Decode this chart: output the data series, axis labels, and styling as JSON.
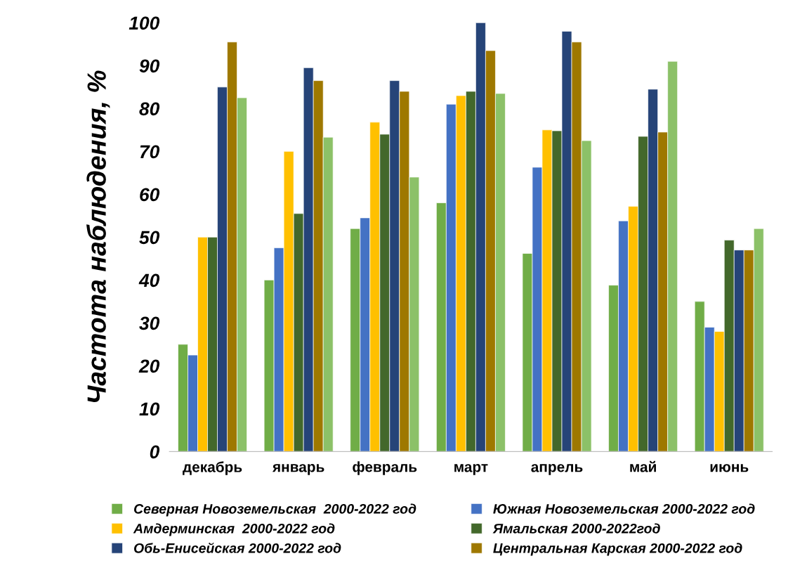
{
  "chart_data": {
    "type": "bar",
    "ylabel": "Частота наблюдения, %",
    "categories": [
      "декабрь",
      "январь",
      "февраль",
      "март",
      "апрель",
      "май",
      "июнь"
    ],
    "series": [
      {
        "name": "Северная Новоземельская  2000-2022 год",
        "color": "#70ad47",
        "values": [
          25,
          40,
          52,
          58,
          46.2,
          38.8,
          35
        ]
      },
      {
        "name": "Южная Новоземельская 2000-2022 год",
        "color": "#4472c4",
        "values": [
          22.5,
          47.5,
          54.5,
          81,
          66.3,
          53.8,
          29
        ]
      },
      {
        "name": "Амдерминская  2000-2022 год",
        "color": "#ffc000",
        "values": [
          50,
          70,
          76.8,
          83,
          75,
          57.2,
          28
        ]
      },
      {
        "name": "Ямальская 2000-2022год",
        "color": "#43682b",
        "values": [
          50,
          55.5,
          74,
          84,
          74.8,
          73.5,
          49.3
        ]
      },
      {
        "name": "Обь-Енисейская 2000-2022 год",
        "color": "#264478",
        "values": [
          85,
          89.5,
          86.5,
          100,
          98,
          84.5,
          47
        ]
      },
      {
        "name": "Центральная Карская 2000-2022 год",
        "color": "#9e7800",
        "values": [
          95.5,
          86.5,
          84,
          93.5,
          95.5,
          74.5,
          47
        ]
      },
      {
        "color": "#8cc168",
        "values": [
          82.5,
          73.3,
          64,
          83.5,
          72.5,
          91,
          52
        ]
      }
    ],
    "ylim": [
      0,
      100
    ],
    "yticks": [
      0,
      10,
      20,
      30,
      40,
      50,
      60,
      70,
      80,
      90,
      100
    ],
    "grid": false,
    "legend": "bottom"
  }
}
